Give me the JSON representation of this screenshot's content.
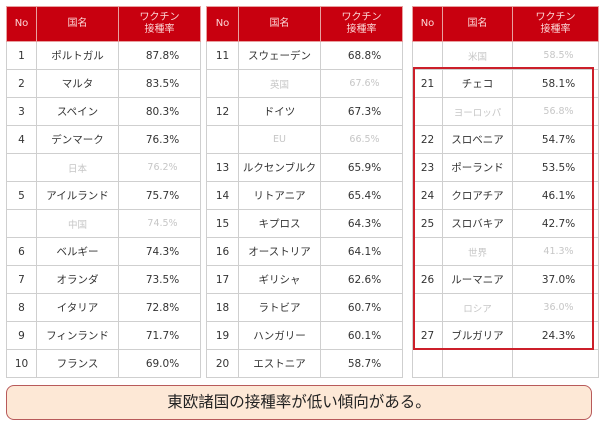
{
  "headers": {
    "no": "No",
    "country": "国名",
    "rate_line1": "ワクチン",
    "rate_line2": "接種率"
  },
  "tables": [
    {
      "rows": [
        {
          "no": "1",
          "country": "ポルトガル",
          "rate": "87.8%",
          "ref": false
        },
        {
          "no": "2",
          "country": "マルタ",
          "rate": "83.5%",
          "ref": false
        },
        {
          "no": "3",
          "country": "スペイン",
          "rate": "80.3%",
          "ref": false
        },
        {
          "no": "4",
          "country": "デンマーク",
          "rate": "76.3%",
          "ref": false
        },
        {
          "no": "",
          "country": "日本",
          "rate": "76.2%",
          "ref": true
        },
        {
          "no": "5",
          "country": "アイルランド",
          "rate": "75.7%",
          "ref": false
        },
        {
          "no": "",
          "country": "中国",
          "rate": "74.5%",
          "ref": true
        },
        {
          "no": "6",
          "country": "ベルギー",
          "rate": "74.3%",
          "ref": false
        },
        {
          "no": "7",
          "country": "オランダ",
          "rate": "73.5%",
          "ref": false
        },
        {
          "no": "8",
          "country": "イタリア",
          "rate": "72.8%",
          "ref": false
        },
        {
          "no": "9",
          "country": "フィンランド",
          "rate": "71.7%",
          "ref": false
        },
        {
          "no": "10",
          "country": "フランス",
          "rate": "69.0%",
          "ref": false
        }
      ]
    },
    {
      "rows": [
        {
          "no": "11",
          "country": "スウェーデン",
          "rate": "68.8%",
          "ref": false
        },
        {
          "no": "",
          "country": "英国",
          "rate": "67.6%",
          "ref": true
        },
        {
          "no": "12",
          "country": "ドイツ",
          "rate": "67.3%",
          "ref": false
        },
        {
          "no": "",
          "country": "EU",
          "rate": "66.5%",
          "ref": true
        },
        {
          "no": "13",
          "country": "ルクセンブルク",
          "rate": "65.9%",
          "ref": false
        },
        {
          "no": "14",
          "country": "リトアニア",
          "rate": "65.4%",
          "ref": false
        },
        {
          "no": "15",
          "country": "キプロス",
          "rate": "64.3%",
          "ref": false
        },
        {
          "no": "16",
          "country": "オーストリア",
          "rate": "64.1%",
          "ref": false
        },
        {
          "no": "17",
          "country": "ギリシャ",
          "rate": "62.6%",
          "ref": false
        },
        {
          "no": "18",
          "country": "ラトビア",
          "rate": "60.7%",
          "ref": false
        },
        {
          "no": "19",
          "country": "ハンガリー",
          "rate": "60.1%",
          "ref": false
        },
        {
          "no": "20",
          "country": "エストニア",
          "rate": "58.7%",
          "ref": false
        }
      ]
    },
    {
      "rows": [
        {
          "no": "",
          "country": "米国",
          "rate": "58.5%",
          "ref": true
        },
        {
          "no": "21",
          "country": "チェコ",
          "rate": "58.1%",
          "ref": false
        },
        {
          "no": "",
          "country": "ヨーロッパ",
          "rate": "56.8%",
          "ref": true
        },
        {
          "no": "22",
          "country": "スロベニア",
          "rate": "54.7%",
          "ref": false
        },
        {
          "no": "23",
          "country": "ポーランド",
          "rate": "53.5%",
          "ref": false
        },
        {
          "no": "24",
          "country": "クロアチア",
          "rate": "46.1%",
          "ref": false
        },
        {
          "no": "25",
          "country": "スロバキア",
          "rate": "42.7%",
          "ref": false
        },
        {
          "no": "",
          "country": "世界",
          "rate": "41.3%",
          "ref": true
        },
        {
          "no": "26",
          "country": "ルーマニア",
          "rate": "37.0%",
          "ref": false
        },
        {
          "no": "",
          "country": "ロシア",
          "rate": "36.0%",
          "ref": true
        },
        {
          "no": "27",
          "country": "ブルガリア",
          "rate": "24.3%",
          "ref": false
        },
        {
          "no": "",
          "country": "",
          "rate": "",
          "ref": false
        }
      ]
    }
  ],
  "note": "東欧諸国の接種率が低い傾向がある。",
  "colors": {
    "header_bg": "#c8000f",
    "highlight_border": "#cc1f2a",
    "note_bg": "#fde8d6"
  }
}
